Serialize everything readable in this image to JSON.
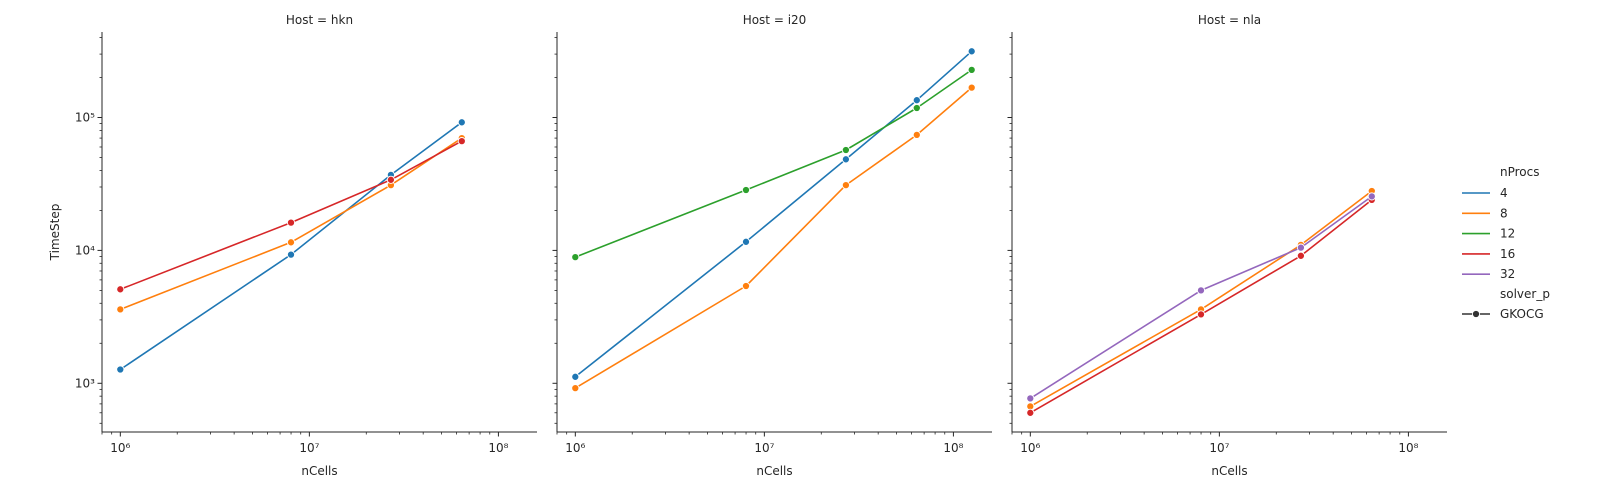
{
  "chart_data": [
    {
      "type": "line",
      "title": "Host = hkn",
      "xlabel": "nCells",
      "ylabel": "TimeStep",
      "xscale": "log",
      "yscale": "log",
      "xlim": [
        800000,
        160000000
      ],
      "ylim": [
        430,
        440000
      ],
      "series": [
        {
          "name": "4",
          "x": [
            1000000,
            8000000,
            27000000,
            64000000
          ],
          "values": [
            1270,
            9300,
            37000,
            92000
          ]
        },
        {
          "name": "8",
          "x": [
            1000000,
            8000000,
            27000000,
            64000000
          ],
          "values": [
            3600,
            11500,
            31000,
            70000
          ]
        },
        {
          "name": "16",
          "x": [
            1000000,
            8000000,
            27000000,
            64000000
          ],
          "values": [
            5100,
            16200,
            34000,
            66500
          ]
        }
      ]
    },
    {
      "type": "line",
      "title": "Host = i20",
      "xlabel": "nCells",
      "ylabel": "",
      "xscale": "log",
      "yscale": "log",
      "xlim": [
        800000,
        160000000
      ],
      "ylim": [
        430,
        440000
      ],
      "series": [
        {
          "name": "4",
          "x": [
            1000000,
            8000000,
            27000000,
            64000000,
            125000000
          ],
          "values": [
            1120,
            11600,
            48500,
            135000,
            315000
          ]
        },
        {
          "name": "8",
          "x": [
            1000000,
            8000000,
            27000000,
            64000000,
            125000000
          ],
          "values": [
            920,
            5400,
            31000,
            74000,
            168000
          ]
        },
        {
          "name": "12",
          "x": [
            1000000,
            8000000,
            27000000,
            64000000,
            125000000
          ],
          "values": [
            8900,
            28500,
            57000,
            118000,
            228000
          ]
        }
      ]
    },
    {
      "type": "line",
      "title": "Host = nla",
      "xlabel": "nCells",
      "ylabel": "",
      "xscale": "log",
      "yscale": "log",
      "xlim": [
        800000,
        160000000
      ],
      "ylim": [
        430,
        440000
      ],
      "series": [
        {
          "name": "8",
          "x": [
            1000000,
            8000000,
            27000000,
            64000000
          ],
          "values": [
            670,
            3600,
            11000,
            28000
          ]
        },
        {
          "name": "16",
          "x": [
            1000000,
            8000000,
            27000000,
            64000000
          ],
          "values": [
            600,
            3300,
            9100,
            24000
          ]
        },
        {
          "name": "32",
          "x": [
            1000000,
            8000000,
            27000000,
            64000000
          ],
          "values": [
            770,
            5000,
            10500,
            25500
          ]
        }
      ]
    }
  ],
  "ticks": {
    "x": [
      {
        "value": 1000000,
        "label": "10⁶"
      },
      {
        "value": 10000000,
        "label": "10⁷"
      },
      {
        "value": 100000000,
        "label": "10⁸"
      }
    ],
    "y": [
      {
        "value": 1000,
        "label": "10³"
      },
      {
        "value": 10000,
        "label": "10⁴"
      },
      {
        "value": 100000,
        "label": "10⁵"
      }
    ]
  },
  "legend": {
    "placement": "right",
    "hue_title": "nProcs",
    "hue_items": [
      {
        "label": "4",
        "color": "#1f77b4"
      },
      {
        "label": "8",
        "color": "#ff7f0e"
      },
      {
        "label": "12",
        "color": "#2ca02c"
      },
      {
        "label": "16",
        "color": "#d62728"
      },
      {
        "label": "32",
        "color": "#9467bd"
      }
    ],
    "style_title": "solver_p",
    "style_items": [
      {
        "label": "GKOCG",
        "color": "#333333"
      }
    ]
  }
}
